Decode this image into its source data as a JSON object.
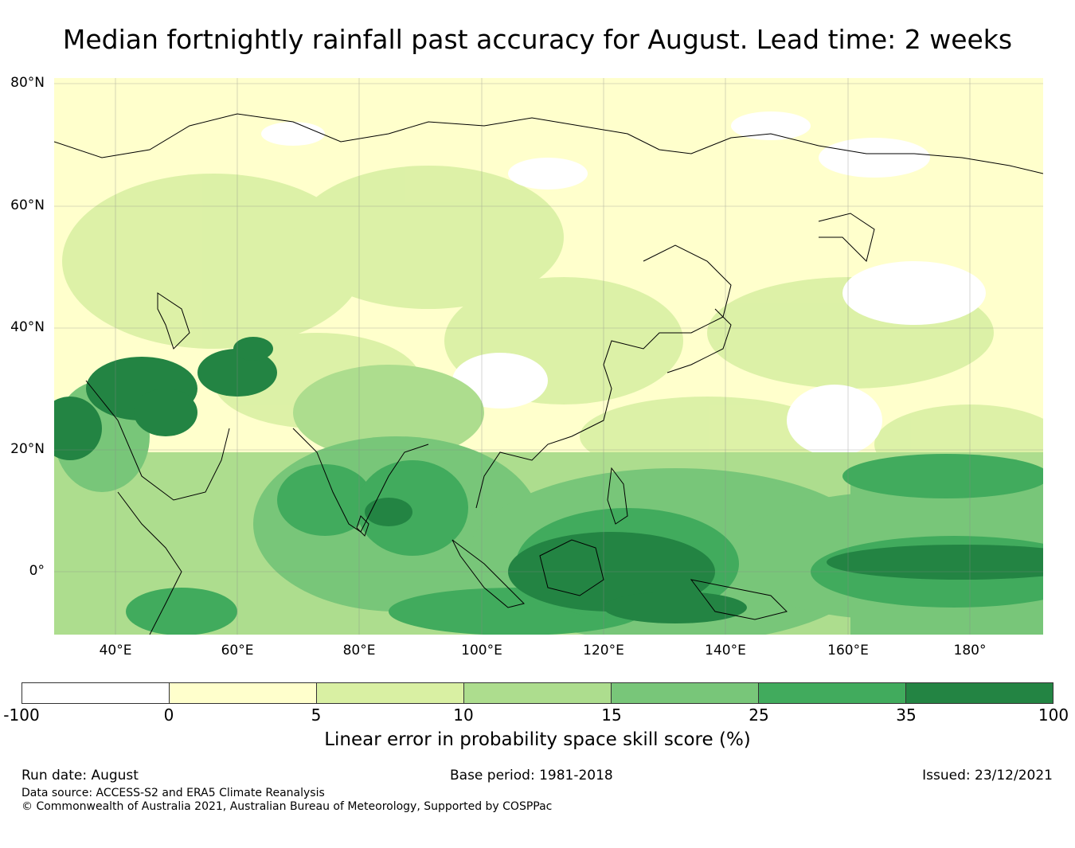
{
  "title": "Median fortnightly rainfall past accuracy for August. Lead time: 2 weeks",
  "map": {
    "lat_ticks": [
      "80°N",
      "60°N",
      "40°N",
      "20°N",
      "0°"
    ],
    "lon_ticks": [
      "40°E",
      "60°E",
      "80°E",
      "100°E",
      "120°E",
      "140°E",
      "160°E",
      "180°"
    ],
    "colors": {
      "ocean_low": "#ffffcc",
      "land_light": "#d9f0a3",
      "mid": "#78c679",
      "high": "#41ab5d",
      "very_high": "#238443",
      "white": "#ffffff",
      "coast": "#000000"
    }
  },
  "colorbar": {
    "ticks": [
      "-100",
      "0",
      "5",
      "10",
      "15",
      "25",
      "35",
      "100"
    ],
    "colors": [
      "#ffffff",
      "#ffffcc",
      "#d9f0a3",
      "#addd8e",
      "#78c679",
      "#41ab5d",
      "#238443"
    ],
    "label": "Linear error in probability space skill score (%)"
  },
  "footer": {
    "run_date": "Run date: August",
    "base_period": "Base period: 1981-2018",
    "issued": "Issued: 23/12/2021",
    "data_source": "Data source: ACCESS-S2 and ERA5 Climate Reanalysis",
    "copyright": "© Commonwealth of Australia 2021, Australian Bureau of Meteorology, Supported by COSPPac"
  }
}
